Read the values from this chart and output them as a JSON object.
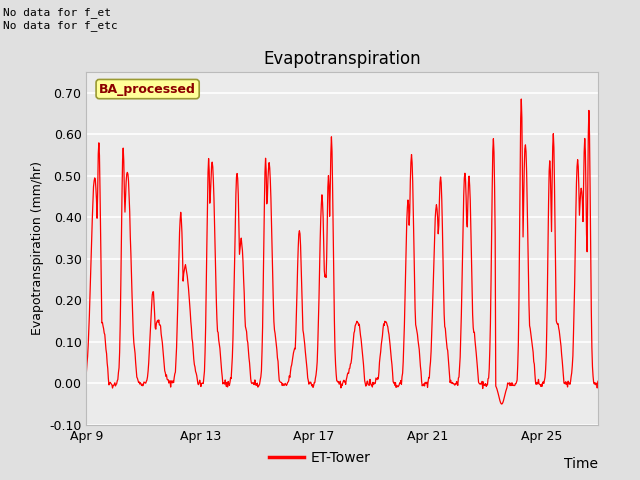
{
  "title": "Evapotranspiration",
  "xlabel": "Time",
  "ylabel": "Evapotranspiration (mm/hr)",
  "ylim": [
    -0.1,
    0.75
  ],
  "yticks": [
    -0.1,
    0.0,
    0.1,
    0.2,
    0.3,
    0.4,
    0.5,
    0.6,
    0.7
  ],
  "figure_bg": "#e0e0e0",
  "plot_bg": "#ebebeb",
  "line_color": "red",
  "annotation_top_left": "No data for f_et\nNo data for f_etc",
  "legend_label": "BA_processed",
  "legend_box_facecolor": "#ffff99",
  "legend_box_edgecolor": "#999933",
  "bottom_legend_label": "ET-Tower",
  "bottom_legend_color": "red",
  "x_tick_days": [
    9,
    13,
    17,
    21,
    25
  ],
  "x_tick_labels": [
    "Apr 9",
    "Apr 13",
    "Apr 17",
    "Apr 21",
    "Apr 25"
  ],
  "n_days": 18,
  "figsize": [
    6.4,
    4.8
  ],
  "dpi": 100
}
